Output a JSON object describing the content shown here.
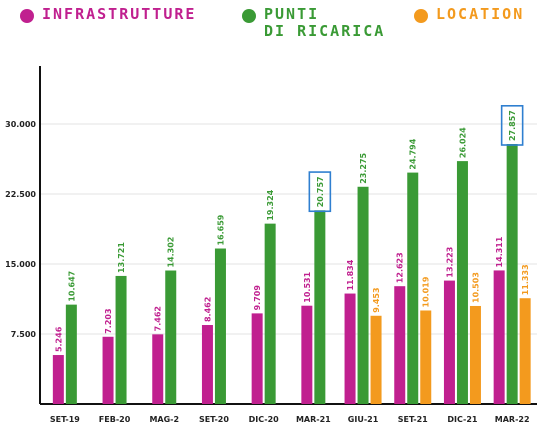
{
  "colors": {
    "infrastrutture": "#c0208f",
    "punti": "#3a9a35",
    "location": "#f39a1e",
    "highlight": "#2f7fd0"
  },
  "legend": [
    {
      "label": "INFRASTRUTTURE",
      "color": "#c0208f"
    },
    {
      "label": "PUNTI\nDI RICARICA",
      "color": "#3a9a35"
    },
    {
      "label": "LOCATION",
      "color": "#f39a1e"
    }
  ],
  "chart_data": {
    "type": "bar",
    "categories": [
      "SET-19",
      "FEB-20",
      "MAG-2",
      "SET-20",
      "DIC-20",
      "MAR-21",
      "GIU-21",
      "SET-21",
      "DIC-21",
      "MAR-22"
    ],
    "series": [
      {
        "name": "INFRASTRUTTURE",
        "values": [
          5246,
          7203,
          7462,
          8462,
          9709,
          10531,
          11834,
          12623,
          13223,
          14311
        ],
        "labels": [
          "5.246",
          "7.203",
          "7.462",
          "8.462",
          "9.709",
          "10.531",
          "11.834",
          "12.623",
          "13.223",
          "14.311"
        ]
      },
      {
        "name": "PUNTI DI RICARICA",
        "values": [
          10647,
          13721,
          14302,
          16659,
          19324,
          20757,
          23275,
          24794,
          26024,
          27857
        ],
        "labels": [
          "10.647",
          "13.721",
          "14.302",
          "16.659",
          "19.324",
          "20.757",
          "23.275",
          "24.794",
          "26.024",
          "27.857"
        ]
      },
      {
        "name": "LOCATION",
        "values": [
          null,
          null,
          null,
          null,
          null,
          null,
          9453,
          10019,
          10503,
          11333
        ],
        "labels": [
          "",
          "",
          "",
          "",
          "",
          "",
          "9.453",
          "10.019",
          "10.503",
          "11.333"
        ]
      }
    ],
    "highlighted": [
      {
        "series": 1,
        "index": 5
      },
      {
        "series": 1,
        "index": 9
      }
    ],
    "yticks": [
      7500,
      15000,
      22500,
      30000
    ],
    "ytick_labels": [
      "7.500",
      "15.000",
      "22.500",
      "30.000"
    ],
    "ylim": [
      0,
      37000
    ],
    "grid": true,
    "legend_position": "top",
    "xlabel": "",
    "ylabel": ""
  }
}
